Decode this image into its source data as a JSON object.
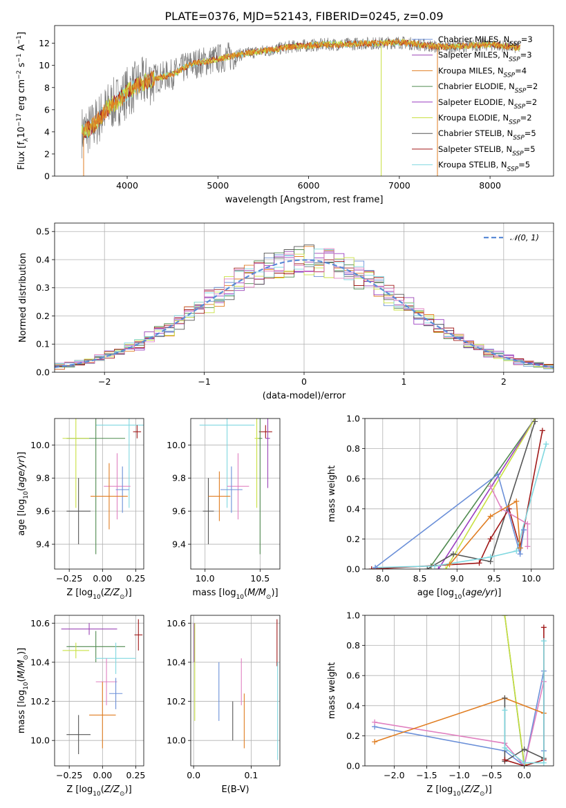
{
  "title": "PLATE=0376, MJD=52143, FIBERID=0245, z=0.09",
  "colors": {
    "Chabrier MILES": "#6a8fd8",
    "Salpeter MILES": "#9a44b6",
    "Kroupa MILES": "#e07d21",
    "Chabrier ELODIE": "#4f8a4f",
    "Salpeter ELODIE": "#9a3cc0",
    "Kroupa ELODIE": "#c8e040",
    "Chabrier STELIB": "#555555",
    "Salpeter STELIB": "#a01818",
    "Kroupa STELIB": "#80d8e0",
    "pink": "#e080c0",
    "data": "#777777",
    "gaussian": "#5b8bd6"
  },
  "chart_data": [
    {
      "id": "spectrum",
      "type": "line",
      "xlabel": "wavelength [Angstrom, rest frame]",
      "ylabel": "Flux [f",
      "xlim": [
        3200,
        8700
      ],
      "ylim": [
        0,
        13.6
      ],
      "xticks": [
        4000,
        5000,
        6000,
        7000,
        8000
      ],
      "yticks": [
        0,
        2,
        4,
        6,
        8,
        10,
        12
      ],
      "legend_position": "right",
      "legend": [
        {
          "name": "Chabrier MILES",
          "n": "3"
        },
        {
          "name": "Salpeter MILES",
          "n": "3"
        },
        {
          "name": "Kroupa MILES",
          "n": "4"
        },
        {
          "name": "Chabrier ELODIE",
          "n": "2"
        },
        {
          "name": "Salpeter ELODIE",
          "n": "2"
        },
        {
          "name": "Kroupa ELODIE",
          "n": "2"
        },
        {
          "name": "Chabrier STELIB",
          "n": "5"
        },
        {
          "name": "Salpeter STELIB",
          "n": "5"
        },
        {
          "name": "Kroupa STELIB",
          "n": "5"
        }
      ],
      "continuum": {
        "x": [
          3500,
          3600,
          3700,
          3800,
          3900,
          4000,
          4100,
          4200,
          4300,
          4400,
          4500,
          4700,
          5000,
          5200,
          5400,
          5600,
          5800,
          6000,
          6200,
          6400,
          6600,
          6800,
          7000,
          7200,
          7400,
          7600,
          7800,
          8000,
          8300
        ],
        "y": [
          4.0,
          4.3,
          5.3,
          6.3,
          6.8,
          7.6,
          8.1,
          8.5,
          8.8,
          9.0,
          9.2,
          10.1,
          10.6,
          10.9,
          11.2,
          11.4,
          11.7,
          11.8,
          11.9,
          11.9,
          12.0,
          12.0,
          12.1,
          11.9,
          11.7,
          11.7,
          11.8,
          11.9,
          11.6
        ]
      }
    },
    {
      "id": "residuals",
      "type": "line",
      "xlabel": "(data-model)/error",
      "ylabel": "Normed distribution",
      "xlim": [
        -2.5,
        2.5
      ],
      "ylim": [
        0,
        0.53
      ],
      "xticks": [
        -2,
        -1,
        0,
        1,
        2
      ],
      "yticks": [
        0.0,
        0.1,
        0.2,
        0.3,
        0.4,
        0.5
      ],
      "legend": "𝒩(0, 1)",
      "legend_position": "top-right",
      "series": [
        {
          "name": "𝒩(0, 1)",
          "mu": 0,
          "sigma": 1
        }
      ]
    },
    {
      "id": "Z-age",
      "type": "scatter",
      "xlabel": "Z [log",
      "ylabel": "age  [log",
      "xlim": [
        -0.36,
        0.31
      ],
      "ylim": [
        9.25,
        10.16
      ],
      "xticks": [
        -0.25,
        0.0,
        0.25
      ],
      "yticks": [
        9.4,
        9.6,
        9.8,
        10.0
      ],
      "points": [
        {
          "model": "Kroupa STELIB",
          "x": 0.2,
          "y": 10.12,
          "xerr": 0.25,
          "yerr": 0.5
        },
        {
          "model": "Salpeter STELIB",
          "x": 0.26,
          "y": 10.08,
          "xerr": 0.03,
          "yerr": 0.04
        },
        {
          "model": "Chabrier ELODIE",
          "x": -0.05,
          "y": 10.04,
          "xerr": 0.22,
          "yerr": 0.7
        },
        {
          "model": "Kroupa ELODIE",
          "x": -0.2,
          "y": 10.04,
          "xerr": 0.1,
          "yerr": 0.42
        },
        {
          "model": "Chabrier STELIB",
          "x": -0.18,
          "y": 9.6,
          "xerr": 0.09,
          "yerr": 0.2
        },
        {
          "model": "pink",
          "x": 0.11,
          "y": 9.75,
          "xerr": 0.1,
          "yerr": 0.2
        },
        {
          "model": "Chabrier MILES",
          "x": 0.15,
          "y": 9.73,
          "xerr": 0.05,
          "yerr": 0.14
        },
        {
          "model": "Kroupa MILES",
          "x": 0.05,
          "y": 9.69,
          "xerr": 0.14,
          "yerr": 0.2
        }
      ]
    },
    {
      "id": "mass-age",
      "type": "scatter",
      "xlabel": "mass [log",
      "ylabel": "",
      "xlim": [
        9.87,
        10.68
      ],
      "ylim": [
        9.25,
        10.16
      ],
      "xticks": [
        10.0,
        10.5
      ],
      "yticks": [
        9.4,
        9.6,
        9.8,
        10.0
      ],
      "points": [
        {
          "model": "Kroupa STELIB",
          "x": 10.2,
          "y": 10.12,
          "xerr": 0.25,
          "yerr": 0.5
        },
        {
          "model": "Salpeter STELIB",
          "x": 10.55,
          "y": 10.08,
          "xerr": 0.06,
          "yerr": 0.04
        },
        {
          "model": "Salpeter MILES",
          "x": 10.57,
          "y": 10.04,
          "xerr": 0.02,
          "yerr": 0.3
        },
        {
          "model": "Chabrier ELODIE",
          "x": 10.5,
          "y": 10.04,
          "xerr": 0.02,
          "yerr": 0.7
        },
        {
          "model": "Kroupa ELODIE",
          "x": 10.47,
          "y": 10.04,
          "xerr": 0.02,
          "yerr": 0.42
        },
        {
          "model": "Chabrier STELIB",
          "x": 10.03,
          "y": 9.6,
          "xerr": 0.05,
          "yerr": 0.2
        },
        {
          "model": "pink",
          "x": 10.3,
          "y": 9.75,
          "xerr": 0.1,
          "yerr": 0.2
        },
        {
          "model": "Chabrier MILES",
          "x": 10.24,
          "y": 9.73,
          "xerr": 0.1,
          "yerr": 0.14
        },
        {
          "model": "Kroupa MILES",
          "x": 10.13,
          "y": 9.69,
          "xerr": 0.1,
          "yerr": 0.15
        }
      ]
    },
    {
      "id": "age-weight",
      "type": "line",
      "xlabel": "age  [log",
      "ylabel": "mass weight",
      "xlim": [
        7.76,
        10.3
      ],
      "ylim": [
        0,
        1
      ],
      "xticks": [
        8.0,
        8.5,
        9.0,
        9.5,
        10.0
      ],
      "yticks": [
        0.0,
        0.2,
        0.4,
        0.6,
        0.8,
        1.0
      ],
      "series": [
        {
          "model": "Chabrier ELODIE",
          "x": [
            8.65,
            10.05
          ],
          "y": [
            0.02,
            1.0
          ]
        },
        {
          "model": "Salpeter ELODIE",
          "x": [
            8.75,
            10.05
          ],
          "y": [
            0.0,
            1.0
          ]
        },
        {
          "model": "Kroupa ELODIE",
          "x": [
            8.85,
            10.05
          ],
          "y": [
            0.0,
            1.0
          ]
        },
        {
          "model": "Chabrier STELIB",
          "x": [
            8.6,
            8.95,
            9.45,
            10.05
          ],
          "y": [
            0.0,
            0.1,
            0.05,
            0.98
          ]
        },
        {
          "model": "Salpeter STELIB",
          "x": [
            7.85,
            9.3,
            9.45,
            9.7,
            9.85,
            10.15
          ],
          "y": [
            0.0,
            0.04,
            0.2,
            0.4,
            0.14,
            0.92
          ]
        },
        {
          "model": "Kroupa STELIB",
          "x": [
            7.9,
            8.7,
            9.45,
            9.8,
            10.2
          ],
          "y": [
            0.01,
            0.02,
            0.08,
            0.12,
            0.83
          ]
        },
        {
          "model": "Chabrier MILES",
          "x": [
            7.9,
            9.55,
            9.85,
            9.9
          ],
          "y": [
            0.01,
            0.63,
            0.1,
            0.26
          ]
        },
        {
          "model": "pink",
          "x": [
            9.45,
            9.6,
            9.95,
            9.95
          ],
          "y": [
            0.55,
            0.4,
            0.3,
            0.15
          ]
        },
        {
          "model": "Kroupa MILES",
          "x": [
            8.9,
            9.45,
            9.8,
            9.85
          ],
          "y": [
            0.03,
            0.35,
            0.45,
            0.14
          ]
        }
      ]
    },
    {
      "id": "Z-mass",
      "type": "scatter",
      "xlabel": "Z [log",
      "ylabel": "mass [log",
      "xlim": [
        -0.36,
        0.31
      ],
      "ylim": [
        9.87,
        10.64
      ],
      "xticks": [
        -0.25,
        0.0,
        0.25
      ],
      "yticks": [
        10.0,
        10.2,
        10.4,
        10.6
      ],
      "points": [
        {
          "model": "Salpeter MILES",
          "x": -0.1,
          "y": 10.57,
          "xerr": 0.21,
          "yerr": 0.03
        },
        {
          "model": "Salpeter STELIB",
          "x": 0.27,
          "y": 10.54,
          "xerr": 0.03,
          "yerr": 0.08
        },
        {
          "model": "Chabrier ELODIE",
          "x": -0.05,
          "y": 10.48,
          "xerr": 0.22,
          "yerr": 0.08
        },
        {
          "model": "Kroupa ELODIE",
          "x": -0.2,
          "y": 10.46,
          "xerr": 0.1,
          "yerr": 0.04
        },
        {
          "model": "Kroupa STELIB",
          "x": 0.1,
          "y": 10.42,
          "xerr": 0.15,
          "yerr": 0.08
        },
        {
          "model": "pink",
          "x": 0.03,
          "y": 10.3,
          "xerr": 0.08,
          "yerr": 0.12
        },
        {
          "model": "Chabrier MILES",
          "x": 0.1,
          "y": 10.24,
          "xerr": 0.05,
          "yerr": 0.08
        },
        {
          "model": "Kroupa MILES",
          "x": 0.0,
          "y": 10.13,
          "xerr": 0.1,
          "yerr": 0.17
        },
        {
          "model": "Chabrier STELIB",
          "x": -0.18,
          "y": 10.03,
          "xerr": 0.09,
          "yerr": 0.1
        }
      ]
    },
    {
      "id": "EBV-mass",
      "type": "scatter",
      "xlabel": "E(B-V)",
      "ylabel": "",
      "xlim": [
        -0.005,
        0.15
      ],
      "ylim": [
        9.87,
        10.64
      ],
      "xticks": [
        0.0,
        0.1
      ],
      "yticks": [
        10.0,
        10.2,
        10.4,
        10.6
      ],
      "points": [
        {
          "model": "Salpeter MILES",
          "x": 0.001,
          "y": 10.5,
          "xerr": 0.0,
          "yerr": 0.1
        },
        {
          "model": "Kroupa ELODIE",
          "x": 0.002,
          "y": 10.35,
          "xerr": 0.0,
          "yerr": 0.25
        },
        {
          "model": "Chabrier MILES",
          "x": 0.044,
          "y": 10.25,
          "xerr": 0.0,
          "yerr": 0.15
        },
        {
          "model": "Chabrier STELIB",
          "x": 0.068,
          "y": 10.1,
          "xerr": 0.0,
          "yerr": 0.1
        },
        {
          "model": "pink",
          "x": 0.083,
          "y": 10.3,
          "xerr": 0.0,
          "yerr": 0.12
        },
        {
          "model": "Kroupa MILES",
          "x": 0.088,
          "y": 10.1,
          "xerr": 0.0,
          "yerr": 0.14
        },
        {
          "model": "Salpeter STELIB",
          "x": 0.145,
          "y": 10.5,
          "xerr": 0.0,
          "yerr": 0.12
        },
        {
          "model": "Kroupa STELIB",
          "x": 0.146,
          "y": 10.15,
          "xerr": 0.0,
          "yerr": 0.25
        }
      ]
    },
    {
      "id": "Z-weight",
      "type": "line",
      "xlabel": "Z [log",
      "ylabel": "mass weight",
      "xlim": [
        -2.45,
        0.45
      ],
      "ylim": [
        0,
        1
      ],
      "xticks": [
        -2.0,
        -1.5,
        -1.0,
        -0.5,
        0.0
      ],
      "yticks": [
        0.0,
        0.2,
        0.4,
        0.6,
        0.8,
        1.0
      ],
      "series": [
        {
          "model": "Chabrier ELODIE",
          "x": [
            -0.3,
            0.0
          ],
          "y": [
            1.0,
            0.0
          ]
        },
        {
          "model": "Kroupa ELODIE",
          "x": [
            -0.3,
            0.0
          ],
          "y": [
            1.0,
            0.01
          ]
        },
        {
          "model": "Chabrier MILES",
          "x": [
            -2.3,
            -0.3,
            0.0,
            0.3,
            0.3
          ],
          "y": [
            0.26,
            0.1,
            0.0,
            0.63,
            0.1
          ]
        },
        {
          "model": "pink",
          "x": [
            -2.3,
            -0.3,
            0.0,
            0.3
          ],
          "y": [
            0.29,
            0.15,
            0.0,
            0.56
          ]
        },
        {
          "model": "Kroupa MILES",
          "x": [
            -2.3,
            -0.3,
            0.3
          ],
          "y": [
            0.16,
            0.45,
            0.35
          ]
        },
        {
          "model": "Chabrier STELIB",
          "x": [
            -0.3,
            -0.3,
            0.0,
            0.3
          ],
          "y": [
            0.45,
            0.03,
            0.11,
            0.05
          ]
        },
        {
          "model": "Salpeter STELIB",
          "x": [
            -0.3,
            0.0,
            0.3,
            0.3
          ],
          "y": [
            0.04,
            0.0,
            0.04,
            0.92
          ]
        },
        {
          "model": "Kroupa STELIB",
          "x": [
            -0.3,
            -0.3,
            0.0,
            0.3,
            0.3
          ],
          "y": [
            0.37,
            0.12,
            0.02,
            0.02,
            0.83
          ]
        }
      ]
    }
  ]
}
